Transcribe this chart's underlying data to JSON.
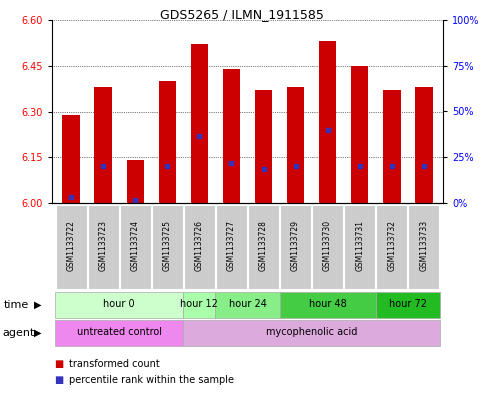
{
  "title": "GDS5265 / ILMN_1911585",
  "samples": [
    "GSM1133722",
    "GSM1133723",
    "GSM1133724",
    "GSM1133725",
    "GSM1133726",
    "GSM1133727",
    "GSM1133728",
    "GSM1133729",
    "GSM1133730",
    "GSM1133731",
    "GSM1133732",
    "GSM1133733"
  ],
  "bar_top": [
    6.29,
    6.38,
    6.14,
    6.4,
    6.52,
    6.44,
    6.37,
    6.38,
    6.53,
    6.45,
    6.37,
    6.38
  ],
  "bar_bottom": 6.0,
  "blue_marker": [
    6.02,
    6.12,
    6.01,
    6.12,
    6.22,
    6.13,
    6.11,
    6.12,
    6.24,
    6.12,
    6.12,
    6.12
  ],
  "ylim_left": [
    6.0,
    6.6
  ],
  "ylim_right": [
    0,
    100
  ],
  "yticks_left": [
    6.0,
    6.15,
    6.3,
    6.45,
    6.6
  ],
  "yticks_right": [
    0,
    25,
    50,
    75,
    100
  ],
  "ytick_labels_right": [
    "0%",
    "25%",
    "50%",
    "75%",
    "100%"
  ],
  "bar_color": "#cc0000",
  "blue_color": "#3333bb",
  "time_groups": [
    {
      "label": "hour 0",
      "start": 0,
      "end": 3,
      "color": "#ccffcc"
    },
    {
      "label": "hour 12",
      "start": 4,
      "end": 4,
      "color": "#aaffaa"
    },
    {
      "label": "hour 24",
      "start": 5,
      "end": 6,
      "color": "#88ee88"
    },
    {
      "label": "hour 48",
      "start": 7,
      "end": 9,
      "color": "#44cc44"
    },
    {
      "label": "hour 72",
      "start": 10,
      "end": 11,
      "color": "#22bb22"
    }
  ],
  "agent_groups": [
    {
      "label": "untreated control",
      "start": 0,
      "end": 3,
      "color": "#ee88ee"
    },
    {
      "label": "mycophenolic acid",
      "start": 4,
      "end": 11,
      "color": "#ddaadd"
    }
  ],
  "sample_bg_color": "#cccccc",
  "legend_red_label": "transformed count",
  "legend_blue_label": "percentile rank within the sample"
}
